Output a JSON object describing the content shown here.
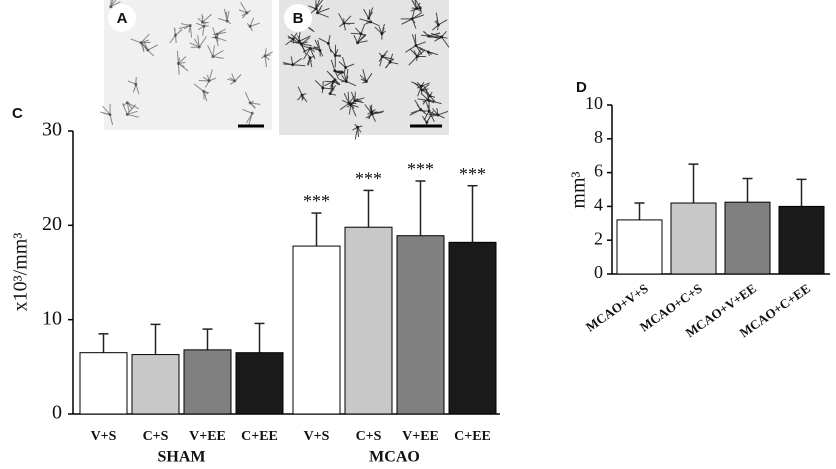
{
  "images": [
    {
      "label": "A"
    },
    {
      "label": "B"
    }
  ],
  "chart_data": [
    {
      "type": "bar",
      "panel": "C",
      "y_label": "x10³/mm³",
      "categories": [
        "V+S",
        "C+S",
        "V+EE",
        "C+EE",
        "V+S",
        "C+S",
        "V+EE",
        "C+EE"
      ],
      "groups": [
        "SHAM",
        "MCAO"
      ],
      "values": [
        6.5,
        6.3,
        6.8,
        6.5,
        17.8,
        19.8,
        18.9,
        18.2
      ],
      "errors": [
        2.0,
        3.2,
        2.2,
        3.1,
        3.5,
        3.9,
        5.8,
        6.0
      ],
      "value_annotations": [
        null,
        null,
        null,
        null,
        "***",
        "***",
        "***",
        "***"
      ],
      "colors": [
        "#ffffff",
        "#c8c8c8",
        "#808080",
        "#1a1a1a",
        "#ffffff",
        "#c8c8c8",
        "#808080",
        "#1a1a1a"
      ],
      "ylim": [
        0,
        30
      ],
      "yticks": [
        0,
        10,
        20,
        30
      ]
    },
    {
      "type": "bar",
      "panel": "D",
      "y_label": "mm³",
      "categories": [
        "MCAO+V+S",
        "MCAO+C+S",
        "MCAO+V+EE",
        "MCAO+C+EE"
      ],
      "values": [
        3.2,
        4.2,
        4.25,
        4.0
      ],
      "errors": [
        1.0,
        2.3,
        1.4,
        1.6
      ],
      "colors": [
        "#ffffff",
        "#c8c8c8",
        "#808080",
        "#1a1a1a"
      ],
      "ylim": [
        0,
        10
      ],
      "yticks": [
        0,
        2,
        4,
        6,
        8,
        10
      ]
    }
  ]
}
